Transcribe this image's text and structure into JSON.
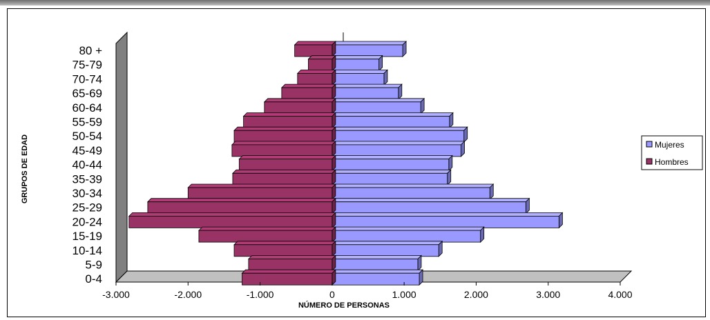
{
  "chart_data": {
    "type": "bar",
    "orientation": "horizontal",
    "style": "population-pyramid-3d",
    "categories": [
      "80 +",
      "75-79",
      "70-74",
      "65-69",
      "60-64",
      "55-59",
      "50-54",
      "45-49",
      "40-44",
      "35-39",
      "30-34",
      "25-29",
      "20-24",
      "15-19",
      "10-14",
      "5-9",
      "0-4"
    ],
    "series": [
      {
        "name": "Mujeres",
        "color": "#9999ff",
        "values": [
          980,
          650,
          720,
          920,
          1230,
          1630,
          1830,
          1790,
          1620,
          1600,
          2190,
          2690,
          3150,
          2060,
          1480,
          1190,
          1210
        ]
      },
      {
        "name": "Hombres",
        "color": "#993366",
        "values": [
          -520,
          -330,
          -480,
          -700,
          -940,
          -1230,
          -1360,
          -1390,
          -1290,
          -1380,
          -2000,
          -2560,
          -2820,
          -1850,
          -1360,
          -1160,
          -1250
        ]
      }
    ],
    "xlim": [
      -3000,
      4000
    ],
    "xticks": [
      -3000,
      -2000,
      -1000,
      0,
      1000,
      2000,
      3000,
      4000
    ],
    "xtick_labels": [
      "-3.000",
      "-2.000",
      "-1.000",
      "0",
      "1.000",
      "2.000",
      "3.000",
      "4.000"
    ],
    "xlabel": "NÚMERO DE PERSONAS",
    "ylabel": "GRUPOS DE EDAD",
    "legend_position": "right",
    "grid": false
  }
}
